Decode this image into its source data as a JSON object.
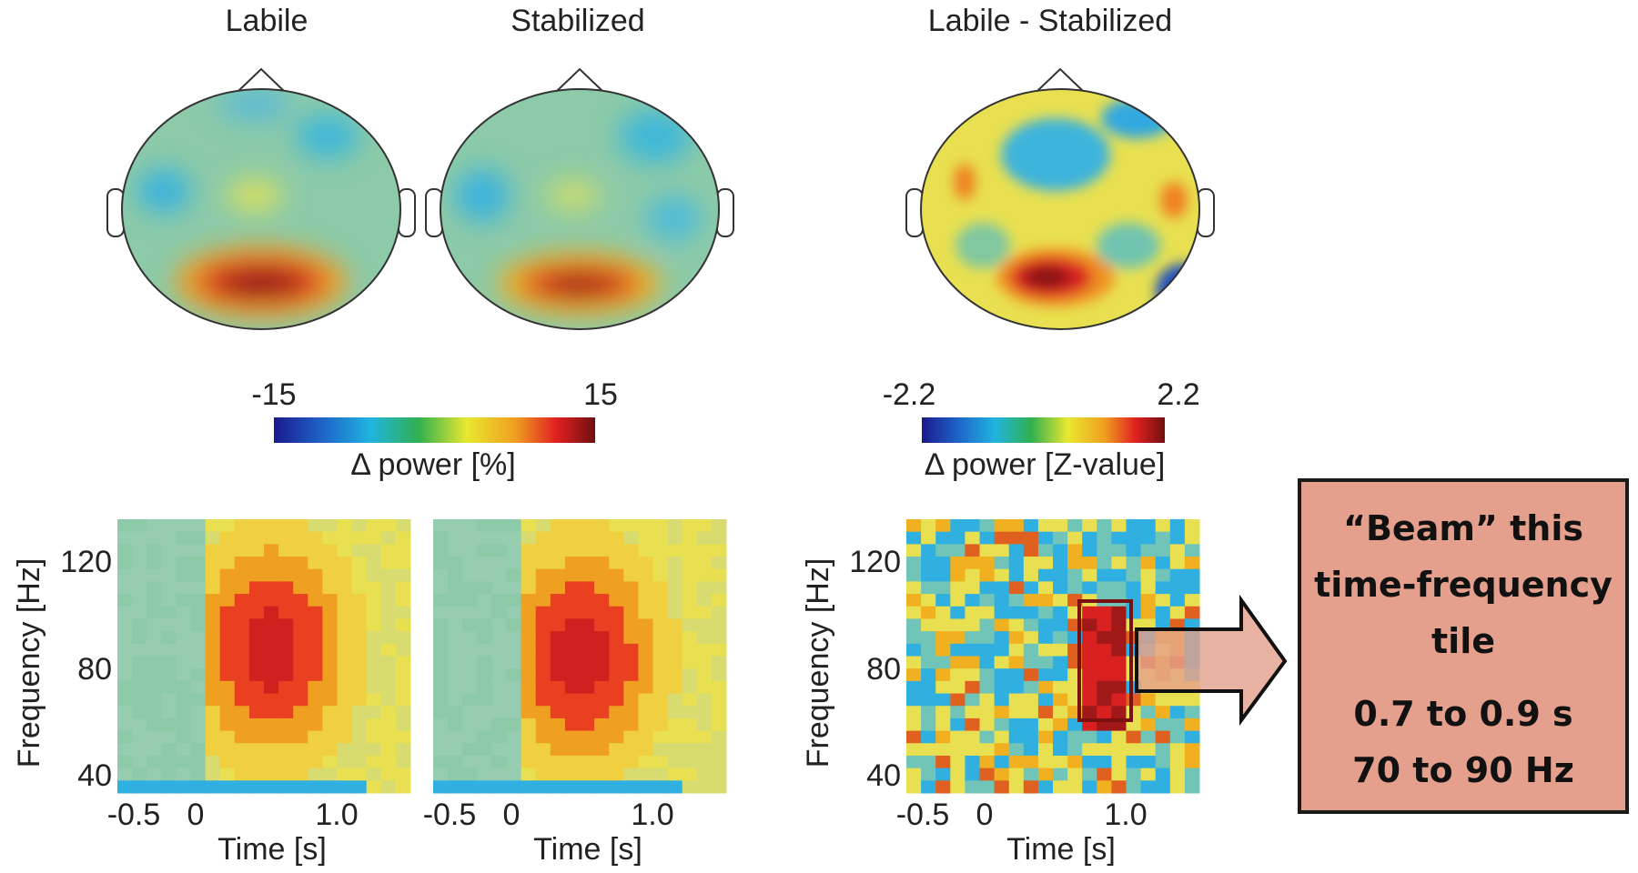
{
  "panels": [
    {
      "title": "Labile"
    },
    {
      "title": "Stabilized"
    },
    {
      "title": "Labile - Stabilized"
    }
  ],
  "colorbars": [
    {
      "min": "-15",
      "max": "15",
      "label": "Δ power [%]"
    },
    {
      "min": "-2.2",
      "max": "2.2",
      "label": "Δ power [Z-value]"
    }
  ],
  "tf_axes": {
    "y_label": "Frequency [Hz]",
    "y_ticks": [
      "120",
      "80",
      "40"
    ],
    "x_label": "Time [s]",
    "x_ticks": [
      "-0.5",
      "0",
      "1.0"
    ]
  },
  "callout": {
    "title": "“Beam” this time-frequency tile",
    "time": "0.7 to 0.9 s",
    "freq": "70 to 90 Hz"
  }
}
